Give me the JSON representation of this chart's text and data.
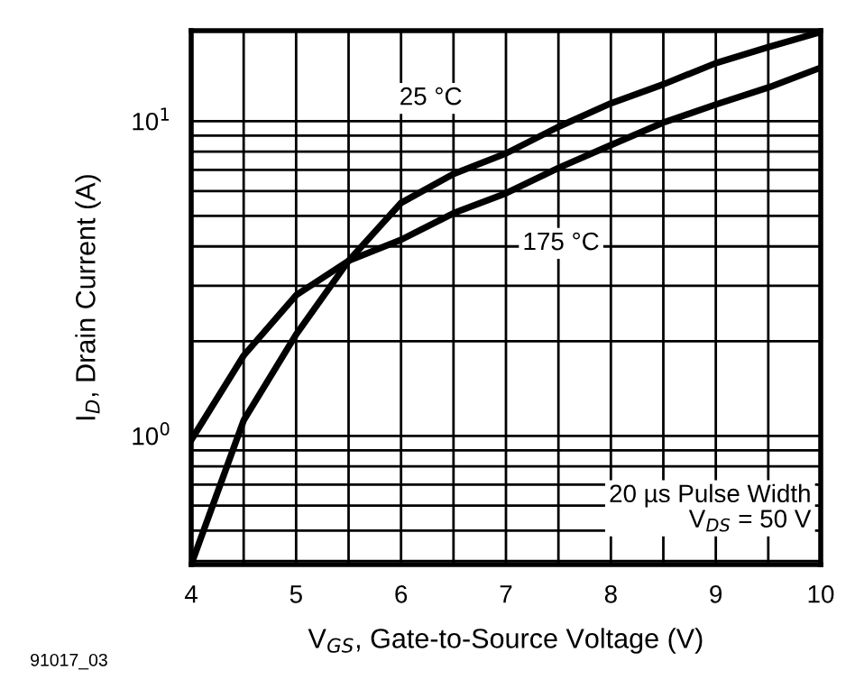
{
  "chart_data": {
    "type": "line",
    "xlabel": "V$_{GS}$, Gate-to-Source Voltage (V)",
    "ylabel": "I$_{D}$, Drain Current (A)",
    "x": [
      4,
      4.5,
      5,
      5.5,
      6,
      6.5,
      7,
      7.5,
      8,
      8.5,
      9,
      9.5,
      10
    ],
    "series": [
      {
        "name": "25 °C",
        "color": "#000000",
        "values": [
          0.39,
          1.12,
          2.1,
          3.6,
          5.5,
          6.8,
          7.9,
          9.6,
          11.4,
          13.1,
          15.3,
          17.2,
          19.2
        ]
      },
      {
        "name": "175 °C",
        "color": "#000000",
        "values": [
          0.97,
          1.8,
          2.8,
          3.6,
          4.2,
          5.1,
          5.9,
          7.1,
          8.4,
          9.9,
          11.3,
          12.8,
          14.8
        ]
      }
    ],
    "log": "y",
    "xlim": [
      4,
      10
    ],
    "ylim": [
      0.39,
      19.4
    ],
    "xticks": [
      4,
      {
        "value": 4.5,
        "label": null
      },
      5,
      {
        "value": 5.5,
        "label": null
      },
      6,
      {
        "value": 6.5,
        "label": null
      },
      7,
      {
        "value": 7.5,
        "label": null
      },
      8,
      {
        "value": 8.5,
        "label": null
      },
      9,
      {
        "value": 9.5,
        "label": null
      },
      10
    ],
    "yticks": [
      {
        "value": 0.4,
        "label": null
      },
      {
        "value": 0.5,
        "label": null
      },
      {
        "value": 0.6,
        "label": null
      },
      {
        "value": 0.7,
        "label": null
      },
      {
        "value": 0.8,
        "label": null
      },
      {
        "value": 0.9,
        "label": null
      },
      {
        "value": 1,
        "label": "10$^{0}$"
      },
      {
        "value": 2,
        "label": null
      },
      {
        "value": 3,
        "label": null
      },
      {
        "value": 4,
        "label": null
      },
      {
        "value": 5,
        "label": null
      },
      {
        "value": 6,
        "label": null
      },
      {
        "value": 7,
        "label": null
      },
      {
        "value": 8,
        "label": null
      },
      {
        "value": 9,
        "label": null
      },
      {
        "value": 10,
        "label": "10$^{1}$"
      }
    ],
    "grid": true,
    "legend": false,
    "marker": "none",
    "line_style": "solid",
    "annotations": [
      "20 µs Pulse Width\nV$_{DS}$ = 50 V",
      "91017_03"
    ]
  }
}
